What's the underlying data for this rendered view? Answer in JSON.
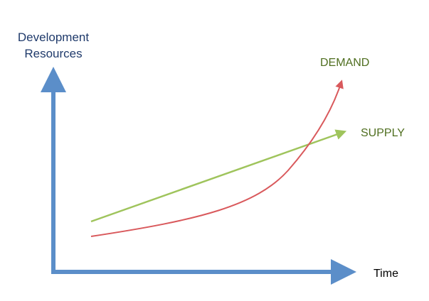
{
  "axes": {
    "y_label_lines": [
      "Development",
      "Resources"
    ],
    "x_label": "Time"
  },
  "curves": {
    "demand": {
      "label": "DEMAND",
      "color": "#d9595c"
    },
    "supply": {
      "label": "SUPPLY",
      "color": "#9fc45c"
    }
  },
  "colors": {
    "axis": "#5b8ec9",
    "demand_label": "#4f6e1f",
    "supply_label": "#4f6e1f",
    "y_label": "#1f3a6b",
    "x_label": "#000000"
  }
}
